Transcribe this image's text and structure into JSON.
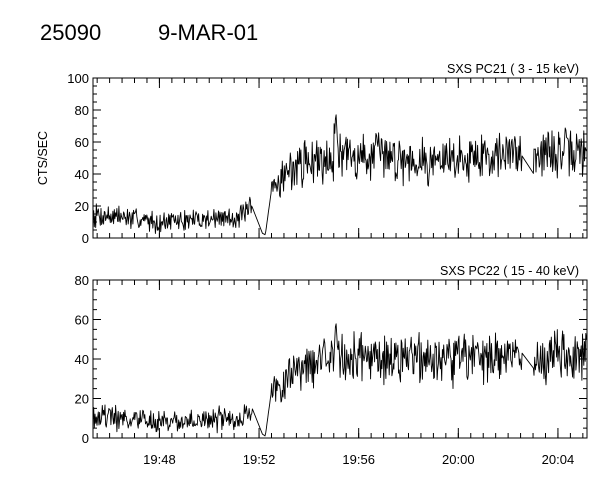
{
  "header": {
    "id_number": "25090",
    "date": "9-MAR-01"
  },
  "chart_data": [
    {
      "type": "line",
      "title": "SXS PC21  (  3 - 15 keV)",
      "xlabel": "",
      "ylabel": "CTS/SEC",
      "xlim": [
        "19:45:20",
        "20:05:10"
      ],
      "ylim": [
        0,
        100
      ],
      "yticks": [
        "0",
        "20",
        "40",
        "60",
        "80",
        "100"
      ],
      "x_tick_labels": [
        "19:48",
        "19:52",
        "19:56",
        "20:00",
        "20:04"
      ],
      "grid": false,
      "series": [
        {
          "x": [
            "19:45:20",
            "19:46:00",
            "19:47:00",
            "19:48:00",
            "19:49:00",
            "19:50:00",
            "19:51:00",
            "19:51:30",
            "19:51:45",
            "19:52:00",
            "19:52:08",
            "19:52:15",
            "19:52:30",
            "19:53:00",
            "19:53:30",
            "19:54:00",
            "19:54:30",
            "19:55:00",
            "19:55:05",
            "19:55:10",
            "19:56:00",
            "19:57:00",
            "19:58:00",
            "19:59:00",
            "20:00:00",
            "20:01:00",
            "20:02:00",
            "20:02:30",
            "20:02:35",
            "20:02:50",
            "20:03:00",
            "20:03:30",
            "20:04:00",
            "20:04:30",
            "20:05:10"
          ],
          "values": [
            15,
            14,
            12,
            10,
            11,
            12,
            13,
            15,
            18,
            20,
            3,
            2,
            30,
            40,
            45,
            48,
            50,
            52,
            80,
            55,
            50,
            52,
            50,
            48,
            50,
            52,
            52,
            55,
            50,
            40,
            55,
            52,
            54,
            52,
            54
          ]
        }
      ]
    },
    {
      "type": "line",
      "title": "SXS PC22  ( 15 - 40 keV)",
      "xlabel": "",
      "ylabel": "",
      "xlim": [
        "19:45:20",
        "20:05:10"
      ],
      "ylim": [
        0,
        80
      ],
      "yticks": [
        "0",
        "20",
        "40",
        "60",
        "80"
      ],
      "x_tick_labels": [
        "19:48",
        "19:52",
        "19:56",
        "20:00",
        "20:04"
      ],
      "grid": false,
      "series": [
        {
          "x": [
            "19:45:20",
            "19:46:00",
            "19:47:00",
            "19:48:00",
            "19:49:00",
            "19:50:00",
            "19:51:00",
            "19:51:30",
            "19:51:45",
            "19:52:00",
            "19:52:08",
            "19:52:15",
            "19:52:30",
            "19:53:00",
            "19:53:30",
            "19:54:00",
            "19:54:30",
            "19:55:00",
            "19:55:05",
            "19:55:10",
            "19:56:00",
            "19:57:00",
            "19:58:00",
            "19:59:00",
            "20:00:00",
            "20:01:00",
            "20:02:00",
            "20:02:30",
            "20:02:35",
            "20:02:50",
            "20:03:00",
            "20:03:30",
            "20:04:00",
            "20:04:30",
            "20:05:10"
          ],
          "values": [
            12,
            11,
            9,
            8,
            8,
            9,
            10,
            12,
            14,
            16,
            2,
            1,
            24,
            30,
            35,
            38,
            40,
            41,
            60,
            42,
            40,
            41,
            40,
            39,
            40,
            41,
            41,
            43,
            40,
            34,
            42,
            41,
            43,
            40,
            42
          ]
        }
      ]
    }
  ]
}
